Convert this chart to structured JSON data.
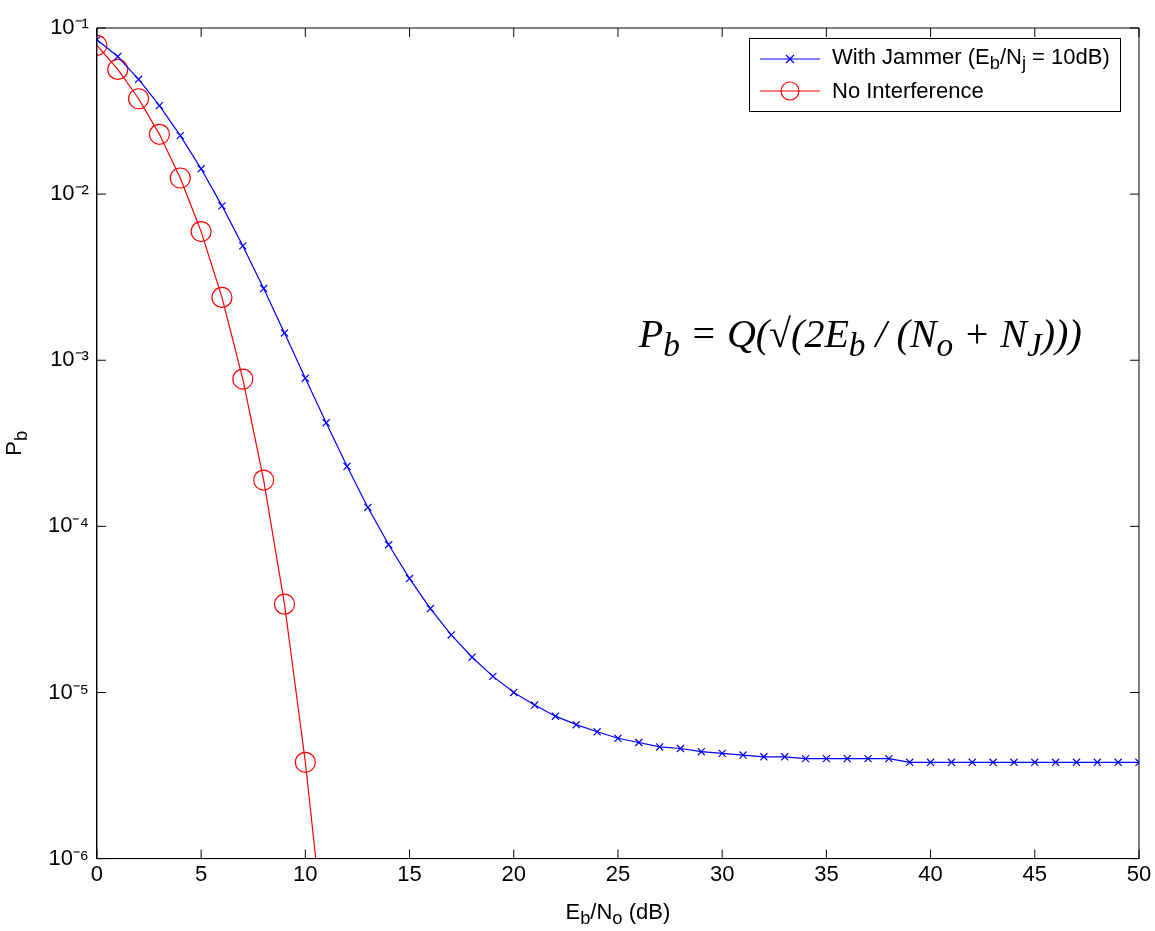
{
  "chart_data": {
    "type": "line",
    "xlabel": "E$_{b}$/N$_{o}$ (dB)",
    "ylabel": "P$_{b}$",
    "log": "y",
    "grid": false,
    "legend": "top right",
    "line_style": "solid",
    "xlim": [
      0,
      50
    ],
    "xticks": [
      0,
      5,
      10,
      15,
      20,
      25,
      30,
      35,
      40,
      45,
      50
    ],
    "ylim": [
      1e-06,
      0.1
    ],
    "yticks": [
      {
        "value": 1e-06,
        "label": "10⁻⁶"
      },
      {
        "value": 1e-05,
        "label": "10⁻⁵"
      },
      {
        "value": 0.0001,
        "label": "10⁻⁴"
      },
      {
        "value": 0.001,
        "label": "10⁻³"
      },
      {
        "value": 0.01,
        "label": "10⁻²"
      },
      {
        "value": 0.1,
        "label": "10⁻¹"
      }
    ],
    "annotations": [
      "P$_{b}$ = Q(√(2E$_{b}$ / (N$_{o}$ + N$_{J}$)))"
    ],
    "series": [
      {
        "name": "With Jammer (E$_{b}$/N$_{j}$ = 10dB)",
        "color": "#0000ff",
        "marker": "cross",
        "x": [
          0,
          1,
          2,
          3,
          4,
          5,
          6,
          7,
          8,
          9,
          10,
          11,
          12,
          13,
          14,
          15,
          16,
          17,
          18,
          19,
          20,
          21,
          22,
          23,
          24,
          25,
          26,
          27,
          28,
          29,
          30,
          31,
          32,
          33,
          34,
          35,
          36,
          37,
          38,
          39,
          40,
          41,
          42,
          43,
          44,
          45,
          46,
          47,
          48,
          49,
          50
        ],
        "values": [
          0.085,
          0.0673,
          0.0491,
          0.0341,
          0.0225,
          0.0142,
          0.0085,
          0.00488,
          0.0027,
          0.00146,
          0.00078,
          0.00042,
          0.00023,
          0.00013,
          7.75e-05,
          4.85e-05,
          3.2e-05,
          2.22e-05,
          1.63e-05,
          1.25e-05,
          1e-05,
          8.4e-06,
          7.2e-06,
          6.4e-06,
          5.8e-06,
          5.3e-06,
          5e-06,
          4.7e-06,
          4.6e-06,
          4.4e-06,
          4.3e-06,
          4.2e-06,
          4.1e-06,
          4.1e-06,
          4e-06,
          4e-06,
          4e-06,
          4e-06,
          4e-06,
          3.8e-06,
          3.8e-06,
          3.8e-06,
          3.8e-06,
          3.8e-06,
          3.8e-06,
          3.8e-06,
          3.8e-06,
          3.8e-06,
          3.8e-06,
          3.8e-06,
          3.8e-06
        ]
      },
      {
        "name": "No Interference",
        "color": "#ff0000",
        "marker": "circle",
        "x": [
          0,
          1,
          2,
          3,
          4,
          5,
          6,
          7,
          8,
          9,
          10,
          10.5
        ],
        "values": [
          0.0786,
          0.0563,
          0.0375,
          0.0229,
          0.0125,
          0.00595,
          0.00239,
          0.00077,
          0.00019,
          3.4e-05,
          3.8e-06,
          1e-06
        ]
      }
    ]
  }
}
